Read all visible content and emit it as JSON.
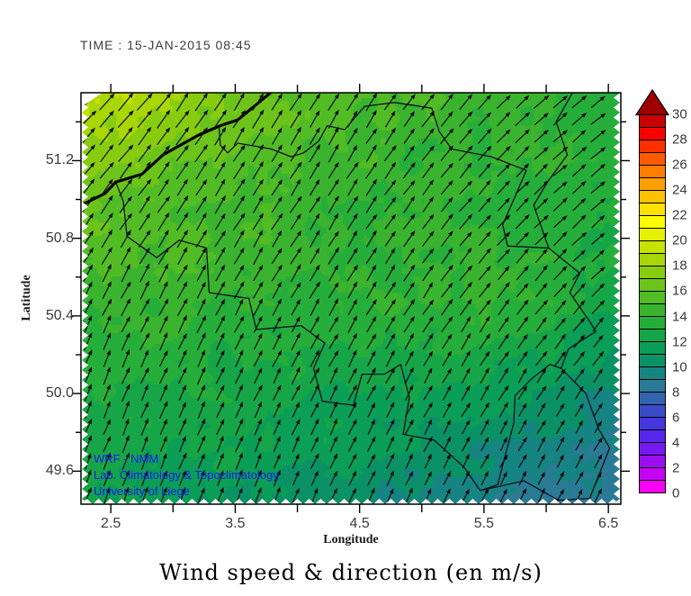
{
  "timestamp": "TIME : 15-JAN-2015 08:45",
  "credits": {
    "color": "#1a1aee",
    "lines": [
      "WRF - NMM",
      "Lab. Climatology & Topoclimatology",
      "University of Liege"
    ]
  },
  "colorbar": {
    "min": 0,
    "max": 30,
    "step": 1,
    "tick_labels": [
      "0",
      "2",
      "4",
      "6",
      "8",
      "10",
      "12",
      "14",
      "16",
      "18",
      "20",
      "22",
      "24",
      "26",
      "28",
      "30"
    ],
    "overflow_color": "#9E0000",
    "palette": [
      "#FA00FA",
      "#C404F2",
      "#9A0EF0",
      "#7618F0",
      "#5826EA",
      "#4536DE",
      "#3A4CC8",
      "#3364AE",
      "#2A7A96",
      "#168482",
      "#0A9266",
      "#0A9E56",
      "#16A648",
      "#26AE3A",
      "#3AB42E",
      "#52BC24",
      "#6CC41A",
      "#88CC10",
      "#A8D606",
      "#C6E200",
      "#E6F000",
      "#FEFE00",
      "#FFE000",
      "#FFC200",
      "#FFA000",
      "#FF7E00",
      "#FF5A00",
      "#FF3000",
      "#F70400",
      "#C90000"
    ]
  },
  "chart_data": {
    "type": "heatmap",
    "title": "Wind speed & direction (en m/s)",
    "xlabel": "Longitude",
    "ylabel": "Latitude",
    "units": "m/s",
    "xlim": [
      2.26,
      6.6
    ],
    "ylim": [
      49.43,
      51.55
    ],
    "x_ticks": [
      2.5,
      3.5,
      4.5,
      5.5,
      6.5
    ],
    "x_tick_labels": [
      "2.5",
      "3.5",
      "4.5",
      "5.5",
      "6.5"
    ],
    "x_minor_ticks": [
      3.0,
      4.0,
      5.0,
      6.0
    ],
    "y_ticks": [
      51.2,
      50.8,
      50.4,
      50.0,
      49.6
    ],
    "y_tick_labels": [
      "51.2",
      "50.8",
      "50.4",
      "50.0",
      "49.6"
    ],
    "y_minor_ticks": [
      51.4,
      51.0,
      50.6,
      50.2,
      49.8
    ],
    "colorbar_tick_values": [
      0,
      2,
      4,
      6,
      8,
      10,
      12,
      14,
      16,
      18,
      20,
      22,
      24,
      26,
      28,
      30
    ],
    "grid": false,
    "legend_position": "right-colorbar",
    "wind_field": {
      "lon": [
        2.26,
        3.34,
        4.43,
        5.51,
        6.6
      ],
      "lat": [
        51.55,
        51.02,
        50.49,
        49.96,
        49.43
      ],
      "speed_ms": [
        [
          19.6,
          17.0,
          15.3,
          14.6,
          13.4
        ],
        [
          16.6,
          15.2,
          14.0,
          13.8,
          13.4
        ],
        [
          14.4,
          14.2,
          13.9,
          14.4,
          12.6
        ],
        [
          12.9,
          12.4,
          12.0,
          11.2,
          9.4
        ],
        [
          12.0,
          11.3,
          10.3,
          9.0,
          8.1
        ]
      ],
      "dir_toward_deg": [
        [
          45,
          33,
          30,
          42,
          55
        ],
        [
          38,
          32,
          33,
          42,
          52
        ],
        [
          26,
          28,
          30,
          36,
          45
        ],
        [
          22,
          24,
          26,
          30,
          33
        ],
        [
          20,
          22,
          24,
          26,
          28
        ]
      ]
    },
    "geo": {
      "coastline": [
        [
          2.26,
          50.97
        ],
        [
          2.45,
          51.03
        ],
        [
          2.54,
          51.09
        ],
        [
          2.75,
          51.13
        ],
        [
          2.92,
          51.23
        ],
        [
          3.2,
          51.33
        ],
        [
          3.38,
          51.38
        ],
        [
          3.52,
          51.41
        ],
        [
          3.69,
          51.5
        ],
        [
          3.82,
          51.57
        ]
      ],
      "borders": {
        "belgium_fr_nl_de": [
          [
            3.37,
            51.37
          ],
          [
            3.38,
            51.28
          ],
          [
            3.44,
            51.24
          ],
          [
            3.52,
            51.29
          ],
          [
            3.79,
            51.26
          ],
          [
            3.95,
            51.22
          ],
          [
            4.05,
            51.24
          ],
          [
            4.17,
            51.3
          ],
          [
            4.24,
            51.38
          ],
          [
            4.38,
            51.36
          ],
          [
            4.54,
            51.48
          ],
          [
            4.78,
            51.5
          ],
          [
            5.08,
            51.47
          ],
          [
            5.14,
            51.35
          ],
          [
            5.24,
            51.26
          ],
          [
            5.56,
            51.22
          ],
          [
            5.84,
            51.15
          ],
          [
            5.76,
            51.03
          ],
          [
            5.65,
            50.87
          ],
          [
            5.69,
            50.76
          ],
          [
            6.02,
            50.75
          ],
          [
            6.27,
            50.62
          ],
          [
            6.19,
            50.52
          ],
          [
            6.34,
            50.38
          ],
          [
            6.4,
            50.32
          ],
          [
            6.18,
            50.23
          ],
          [
            6.12,
            50.13
          ],
          [
            6.03,
            50.15
          ],
          [
            5.89,
            50.08
          ],
          [
            5.75,
            49.99
          ],
          [
            5.74,
            49.85
          ],
          [
            5.61,
            49.53
          ],
          [
            5.47,
            49.5
          ],
          [
            5.34,
            49.62
          ],
          [
            5.1,
            49.76
          ],
          [
            4.85,
            49.79
          ],
          [
            4.9,
            49.98
          ],
          [
            4.83,
            50.15
          ],
          [
            4.7,
            50.1
          ],
          [
            4.52,
            50.1
          ],
          [
            4.45,
            49.94
          ],
          [
            4.2,
            49.96
          ],
          [
            4.13,
            50.13
          ],
          [
            4.22,
            50.26
          ],
          [
            4.03,
            50.35
          ],
          [
            3.67,
            50.33
          ],
          [
            3.61,
            50.49
          ],
          [
            3.29,
            50.52
          ],
          [
            3.27,
            50.75
          ],
          [
            3.05,
            50.79
          ],
          [
            2.87,
            50.7
          ],
          [
            2.63,
            50.81
          ],
          [
            2.6,
            50.99
          ],
          [
            2.54,
            51.09
          ]
        ],
        "luxembourg": [
          [
            5.47,
            49.5
          ],
          [
            5.82,
            49.55
          ],
          [
            6.1,
            49.45
          ],
          [
            6.35,
            49.46
          ],
          [
            6.51,
            49.72
          ],
          [
            6.42,
            49.82
          ],
          [
            6.32,
            50.0
          ],
          [
            6.12,
            50.13
          ]
        ],
        "netherlands_germany": [
          [
            6.02,
            50.75
          ],
          [
            5.9,
            50.97
          ],
          [
            6.01,
            51.09
          ],
          [
            6.17,
            51.23
          ],
          [
            6.08,
            51.4
          ],
          [
            6.22,
            51.56
          ]
        ]
      }
    }
  }
}
